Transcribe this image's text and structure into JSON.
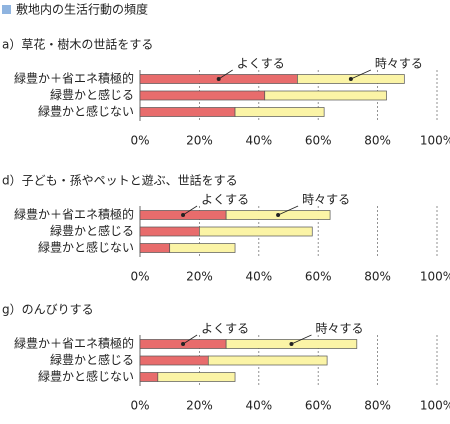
{
  "header": {
    "title": "敷地内の生活行動の頻度"
  },
  "chart_data": [
    {
      "type": "bar",
      "orientation": "horizontal",
      "stacked": true,
      "title": "a）草花・樹木の世話をする",
      "categories": [
        "緑豊か＋省エネ積極的",
        "緑豊かと感じる",
        "緑豊かと感じない"
      ],
      "series": [
        {
          "name": "よくする",
          "color": "#e86c6c",
          "values": [
            53,
            42,
            32
          ]
        },
        {
          "name": "時々する",
          "color": "#fbf4a6",
          "values": [
            36,
            41,
            30
          ]
        }
      ],
      "xlim": [
        0,
        100
      ],
      "xticks": [
        {
          "value": 0,
          "label": "0%"
        },
        {
          "value": 20,
          "label": "20%"
        },
        {
          "value": 40,
          "label": "40%"
        },
        {
          "value": 60,
          "label": "60%"
        },
        {
          "value": 80,
          "label": "80%"
        },
        {
          "value": 100,
          "label": "100%"
        }
      ],
      "grid": true
    },
    {
      "type": "bar",
      "orientation": "horizontal",
      "stacked": true,
      "title": "d）子ども・孫やペットと遊ぶ、世話をする",
      "categories": [
        "緑豊か＋省エネ積極的",
        "緑豊かと感じる",
        "緑豊かと感じない"
      ],
      "series": [
        {
          "name": "よくする",
          "color": "#e86c6c",
          "values": [
            29,
            20,
            10
          ]
        },
        {
          "name": "時々する",
          "color": "#fbf4a6",
          "values": [
            35,
            38,
            22
          ]
        }
      ],
      "xlim": [
        0,
        100
      ],
      "xticks": [
        {
          "value": 0,
          "label": "0%"
        },
        {
          "value": 20,
          "label": "20%"
        },
        {
          "value": 40,
          "label": "40%"
        },
        {
          "value": 60,
          "label": "60%"
        },
        {
          "value": 80,
          "label": "80%"
        },
        {
          "value": 100,
          "label": "100%"
        }
      ],
      "grid": true
    },
    {
      "type": "bar",
      "orientation": "horizontal",
      "stacked": true,
      "title": "g）のんびりする",
      "categories": [
        "緑豊か＋省エネ積極的",
        "緑豊かと感じる",
        "緑豊かと感じない"
      ],
      "series": [
        {
          "name": "よくする",
          "color": "#e86c6c",
          "values": [
            29,
            23,
            6
          ]
        },
        {
          "name": "時々する",
          "color": "#fbf4a6",
          "values": [
            44,
            40,
            26
          ]
        }
      ],
      "xlim": [
        0,
        100
      ],
      "xticks": [
        {
          "value": 0,
          "label": "0%"
        },
        {
          "value": 20,
          "label": "20%"
        },
        {
          "value": 40,
          "label": "40%"
        },
        {
          "value": 60,
          "label": "60%"
        },
        {
          "value": 80,
          "label": "80%"
        },
        {
          "value": 100,
          "label": "100%"
        }
      ],
      "grid": true
    }
  ]
}
